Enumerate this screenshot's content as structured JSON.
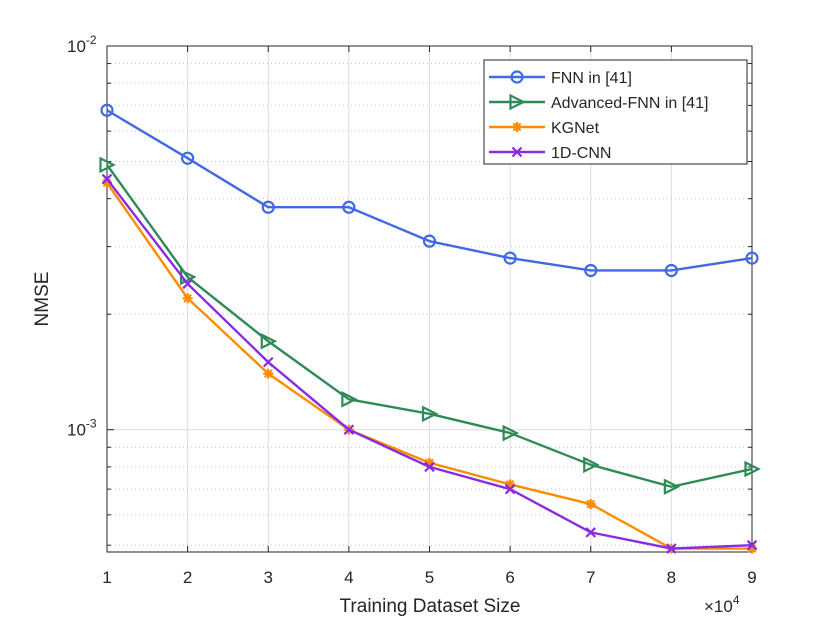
{
  "chart_data": {
    "type": "line",
    "title": "",
    "xlabel": "Training Dataset Size",
    "ylabel": "NMSE",
    "x_multiplier_label": "×10",
    "x_multiplier_exp": "4",
    "x": [
      1,
      2,
      3,
      4,
      5,
      6,
      7,
      8,
      9
    ],
    "xlim": [
      1,
      9
    ],
    "ylim": [
      0.00048,
      0.01
    ],
    "yscale": "log",
    "grid": true,
    "legend_position": "top-right",
    "x_tick_labels": [
      "1",
      "2",
      "3",
      "4",
      "5",
      "6",
      "7",
      "8",
      "9"
    ],
    "y_tick_labels": [
      {
        "value": 0.01,
        "base": "10",
        "exp": "-2"
      },
      {
        "value": 0.001,
        "base": "10",
        "exp": "-3"
      }
    ],
    "series": [
      {
        "name": "FNN in [41]",
        "color": "#4169e1",
        "marker": "circle",
        "values": [
          0.0068,
          0.0051,
          0.0038,
          0.0038,
          0.0031,
          0.0028,
          0.0026,
          0.0026,
          0.0028
        ]
      },
      {
        "name": "Advanced-FNN in [41]",
        "color": "#2e8b57",
        "marker": "triangle-right",
        "values": [
          0.0049,
          0.0025,
          0.0017,
          0.0012,
          0.0011,
          0.00098,
          0.00081,
          0.00071,
          0.00079
        ]
      },
      {
        "name": "KGNet",
        "color": "#ff8c00",
        "marker": "asterisk",
        "values": [
          0.0044,
          0.0022,
          0.0014,
          0.001,
          0.00082,
          0.00072,
          0.00064,
          0.00049,
          0.00049
        ]
      },
      {
        "name": "1D-CNN",
        "color": "#8a2be2",
        "marker": "x",
        "values": [
          0.0045,
          0.0024,
          0.0015,
          0.001,
          0.0008,
          0.0007,
          0.00054,
          0.00049,
          0.0005
        ]
      }
    ]
  }
}
